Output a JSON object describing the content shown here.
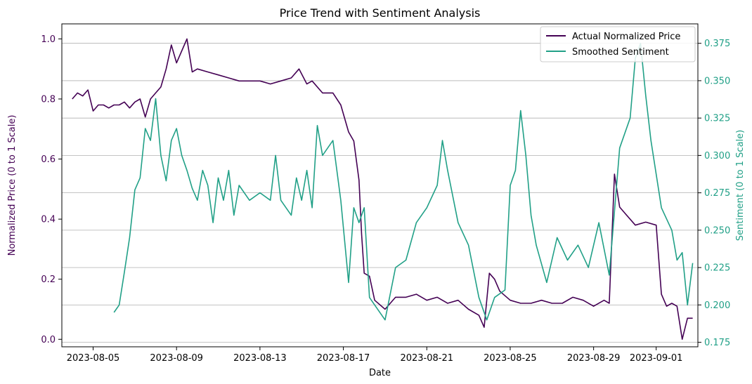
{
  "chart_data": {
    "type": "line",
    "title": "Price Trend with Sentiment Analysis",
    "xlabel": "Date",
    "ylabel_left": "Normalized Price (0 to 1 Scale)",
    "ylabel_right": "Sentiment (0 to 1 Scale)",
    "x_ticks": [
      "2023-08-05",
      "2023-08-09",
      "2023-08-13",
      "2023-08-17",
      "2023-08-21",
      "2023-08-25",
      "2023-08-29",
      "2023-09-01"
    ],
    "y_left_ticks": [
      "0.0",
      "0.2",
      "0.4",
      "0.6",
      "0.8",
      "1.0"
    ],
    "y_right_ticks": [
      "0.175",
      "0.200",
      "0.225",
      "0.250",
      "0.275",
      "0.300",
      "0.325",
      "0.350",
      "0.375"
    ],
    "y_left_range": [
      -0.025,
      1.05
    ],
    "y_right_range": [
      0.172,
      0.388
    ],
    "x_range": [
      "2023-08-03T12:00",
      "2023-09-03T00:00"
    ],
    "grid": "horizontal lines at right-axis ticks",
    "legend_position": "top-right",
    "colors": {
      "price": "#440154",
      "sentiment": "#21a087",
      "grid": "#b0b0b0",
      "axis": "#000000"
    },
    "series": [
      {
        "name": "Actual Normalized Price",
        "axis": "left",
        "points": [
          [
            "2023-08-04T00:00",
            0.8
          ],
          [
            "2023-08-04T06:00",
            0.82
          ],
          [
            "2023-08-04T12:00",
            0.81
          ],
          [
            "2023-08-04T18:00",
            0.83
          ],
          [
            "2023-08-05T00:00",
            0.76
          ],
          [
            "2023-08-05T06:00",
            0.78
          ],
          [
            "2023-08-05T12:00",
            0.78
          ],
          [
            "2023-08-05T18:00",
            0.77
          ],
          [
            "2023-08-06T00:00",
            0.78
          ],
          [
            "2023-08-06T06:00",
            0.78
          ],
          [
            "2023-08-06T12:00",
            0.79
          ],
          [
            "2023-08-06T18:00",
            0.77
          ],
          [
            "2023-08-07T00:00",
            0.79
          ],
          [
            "2023-08-07T06:00",
            0.8
          ],
          [
            "2023-08-07T12:00",
            0.74
          ],
          [
            "2023-08-07T18:00",
            0.8
          ],
          [
            "2023-08-08T00:00",
            0.82
          ],
          [
            "2023-08-08T06:00",
            0.84
          ],
          [
            "2023-08-08T12:00",
            0.9
          ],
          [
            "2023-08-08T18:00",
            0.98
          ],
          [
            "2023-08-09T00:00",
            0.92
          ],
          [
            "2023-08-09T06:00",
            0.96
          ],
          [
            "2023-08-09T12:00",
            1.0
          ],
          [
            "2023-08-09T18:00",
            0.89
          ],
          [
            "2023-08-10T00:00",
            0.9
          ],
          [
            "2023-08-10T12:00",
            0.89
          ],
          [
            "2023-08-11T00:00",
            0.88
          ],
          [
            "2023-08-11T12:00",
            0.87
          ],
          [
            "2023-08-12T00:00",
            0.86
          ],
          [
            "2023-08-12T12:00",
            0.86
          ],
          [
            "2023-08-13T00:00",
            0.86
          ],
          [
            "2023-08-13T12:00",
            0.85
          ],
          [
            "2023-08-14T00:00",
            0.86
          ],
          [
            "2023-08-14T12:00",
            0.87
          ],
          [
            "2023-08-14T21:00",
            0.9
          ],
          [
            "2023-08-15T06:00",
            0.85
          ],
          [
            "2023-08-15T12:00",
            0.86
          ],
          [
            "2023-08-16T00:00",
            0.82
          ],
          [
            "2023-08-16T12:00",
            0.82
          ],
          [
            "2023-08-16T21:00",
            0.78
          ],
          [
            "2023-08-17T06:00",
            0.69
          ],
          [
            "2023-08-17T12:00",
            0.66
          ],
          [
            "2023-08-17T18:00",
            0.53
          ],
          [
            "2023-08-17T21:00",
            0.35
          ],
          [
            "2023-08-18T00:00",
            0.22
          ],
          [
            "2023-08-18T06:00",
            0.21
          ],
          [
            "2023-08-18T12:00",
            0.13
          ],
          [
            "2023-08-19T00:00",
            0.1
          ],
          [
            "2023-08-19T12:00",
            0.14
          ],
          [
            "2023-08-20T00:00",
            0.14
          ],
          [
            "2023-08-20T12:00",
            0.15
          ],
          [
            "2023-08-21T00:00",
            0.13
          ],
          [
            "2023-08-21T12:00",
            0.14
          ],
          [
            "2023-08-22T00:00",
            0.12
          ],
          [
            "2023-08-22T12:00",
            0.13
          ],
          [
            "2023-08-23T00:00",
            0.1
          ],
          [
            "2023-08-23T12:00",
            0.08
          ],
          [
            "2023-08-23T18:00",
            0.04
          ],
          [
            "2023-08-24T00:00",
            0.22
          ],
          [
            "2023-08-24T06:00",
            0.2
          ],
          [
            "2023-08-24T12:00",
            0.16
          ],
          [
            "2023-08-25T00:00",
            0.13
          ],
          [
            "2023-08-25T12:00",
            0.12
          ],
          [
            "2023-08-26T00:00",
            0.12
          ],
          [
            "2023-08-26T12:00",
            0.13
          ],
          [
            "2023-08-27T00:00",
            0.12
          ],
          [
            "2023-08-27T12:00",
            0.12
          ],
          [
            "2023-08-28T00:00",
            0.14
          ],
          [
            "2023-08-28T12:00",
            0.13
          ],
          [
            "2023-08-29T00:00",
            0.11
          ],
          [
            "2023-08-29T12:00",
            0.13
          ],
          [
            "2023-08-29T18:00",
            0.12
          ],
          [
            "2023-08-30T00:00",
            0.55
          ],
          [
            "2023-08-30T06:00",
            0.44
          ],
          [
            "2023-08-30T12:00",
            0.42
          ],
          [
            "2023-08-31T00:00",
            0.38
          ],
          [
            "2023-08-31T12:00",
            0.39
          ],
          [
            "2023-09-01T00:00",
            0.38
          ],
          [
            "2023-09-01T06:00",
            0.15
          ],
          [
            "2023-09-01T12:00",
            0.11
          ],
          [
            "2023-09-01T18:00",
            0.12
          ],
          [
            "2023-09-02T00:00",
            0.11
          ],
          [
            "2023-09-02T06:00",
            0.0
          ],
          [
            "2023-09-02T12:00",
            0.07
          ],
          [
            "2023-09-02T18:00",
            0.07
          ]
        ]
      },
      {
        "name": "Smoothed Sentiment",
        "axis": "right",
        "points": [
          [
            "2023-08-06T00:00",
            0.195
          ],
          [
            "2023-08-06T06:00",
            0.2
          ],
          [
            "2023-08-06T12:00",
            0.222
          ],
          [
            "2023-08-06T18:00",
            0.245
          ],
          [
            "2023-08-07T00:00",
            0.277
          ],
          [
            "2023-08-07T06:00",
            0.285
          ],
          [
            "2023-08-07T12:00",
            0.318
          ],
          [
            "2023-08-07T18:00",
            0.31
          ],
          [
            "2023-08-08T00:00",
            0.338
          ],
          [
            "2023-08-08T06:00",
            0.3
          ],
          [
            "2023-08-08T12:00",
            0.283
          ],
          [
            "2023-08-08T18:00",
            0.31
          ],
          [
            "2023-08-09T00:00",
            0.318
          ],
          [
            "2023-08-09T06:00",
            0.3
          ],
          [
            "2023-08-09T12:00",
            0.29
          ],
          [
            "2023-08-09T18:00",
            0.278
          ],
          [
            "2023-08-10T00:00",
            0.27
          ],
          [
            "2023-08-10T06:00",
            0.29
          ],
          [
            "2023-08-10T12:00",
            0.28
          ],
          [
            "2023-08-10T18:00",
            0.255
          ],
          [
            "2023-08-11T00:00",
            0.285
          ],
          [
            "2023-08-11T06:00",
            0.27
          ],
          [
            "2023-08-11T12:00",
            0.29
          ],
          [
            "2023-08-11T18:00",
            0.26
          ],
          [
            "2023-08-12T00:00",
            0.28
          ],
          [
            "2023-08-12T12:00",
            0.27
          ],
          [
            "2023-08-13T00:00",
            0.275
          ],
          [
            "2023-08-13T12:00",
            0.27
          ],
          [
            "2023-08-13T18:00",
            0.3
          ],
          [
            "2023-08-14T00:00",
            0.27
          ],
          [
            "2023-08-14T12:00",
            0.26
          ],
          [
            "2023-08-14T18:00",
            0.285
          ],
          [
            "2023-08-15T00:00",
            0.27
          ],
          [
            "2023-08-15T06:00",
            0.29
          ],
          [
            "2023-08-15T12:00",
            0.265
          ],
          [
            "2023-08-15T18:00",
            0.32
          ],
          [
            "2023-08-16T00:00",
            0.3
          ],
          [
            "2023-08-16T12:00",
            0.31
          ],
          [
            "2023-08-16T21:00",
            0.27
          ],
          [
            "2023-08-17T06:00",
            0.215
          ],
          [
            "2023-08-17T12:00",
            0.265
          ],
          [
            "2023-08-17T18:00",
            0.255
          ],
          [
            "2023-08-18T00:00",
            0.265
          ],
          [
            "2023-08-18T06:00",
            0.205
          ],
          [
            "2023-08-18T12:00",
            0.2
          ],
          [
            "2023-08-19T00:00",
            0.19
          ],
          [
            "2023-08-19T12:00",
            0.225
          ],
          [
            "2023-08-20T00:00",
            0.23
          ],
          [
            "2023-08-20T12:00",
            0.255
          ],
          [
            "2023-08-21T00:00",
            0.265
          ],
          [
            "2023-08-21T12:00",
            0.28
          ],
          [
            "2023-08-21T18:00",
            0.31
          ],
          [
            "2023-08-22T00:00",
            0.29
          ],
          [
            "2023-08-22T12:00",
            0.255
          ],
          [
            "2023-08-23T00:00",
            0.24
          ],
          [
            "2023-08-23T12:00",
            0.205
          ],
          [
            "2023-08-23T21:00",
            0.19
          ],
          [
            "2023-08-24T06:00",
            0.205
          ],
          [
            "2023-08-24T18:00",
            0.21
          ],
          [
            "2023-08-25T00:00",
            0.28
          ],
          [
            "2023-08-25T06:00",
            0.29
          ],
          [
            "2023-08-25T12:00",
            0.33
          ],
          [
            "2023-08-25T18:00",
            0.3
          ],
          [
            "2023-08-26T00:00",
            0.26
          ],
          [
            "2023-08-26T06:00",
            0.24
          ],
          [
            "2023-08-26T18:00",
            0.215
          ],
          [
            "2023-08-27T06:00",
            0.245
          ],
          [
            "2023-08-27T18:00",
            0.23
          ],
          [
            "2023-08-28T06:00",
            0.24
          ],
          [
            "2023-08-28T18:00",
            0.225
          ],
          [
            "2023-08-29T06:00",
            0.255
          ],
          [
            "2023-08-29T18:00",
            0.22
          ],
          [
            "2023-08-30T06:00",
            0.305
          ],
          [
            "2023-08-30T18:00",
            0.325
          ],
          [
            "2023-08-31T00:00",
            0.365
          ],
          [
            "2023-08-31T06:00",
            0.375
          ],
          [
            "2023-08-31T12:00",
            0.34
          ],
          [
            "2023-08-31T18:00",
            0.31
          ],
          [
            "2023-09-01T06:00",
            0.265
          ],
          [
            "2023-09-01T18:00",
            0.25
          ],
          [
            "2023-09-02T00:00",
            0.23
          ],
          [
            "2023-09-02T06:00",
            0.235
          ],
          [
            "2023-09-02T12:00",
            0.2
          ],
          [
            "2023-09-02T18:00",
            0.228
          ]
        ]
      }
    ]
  }
}
